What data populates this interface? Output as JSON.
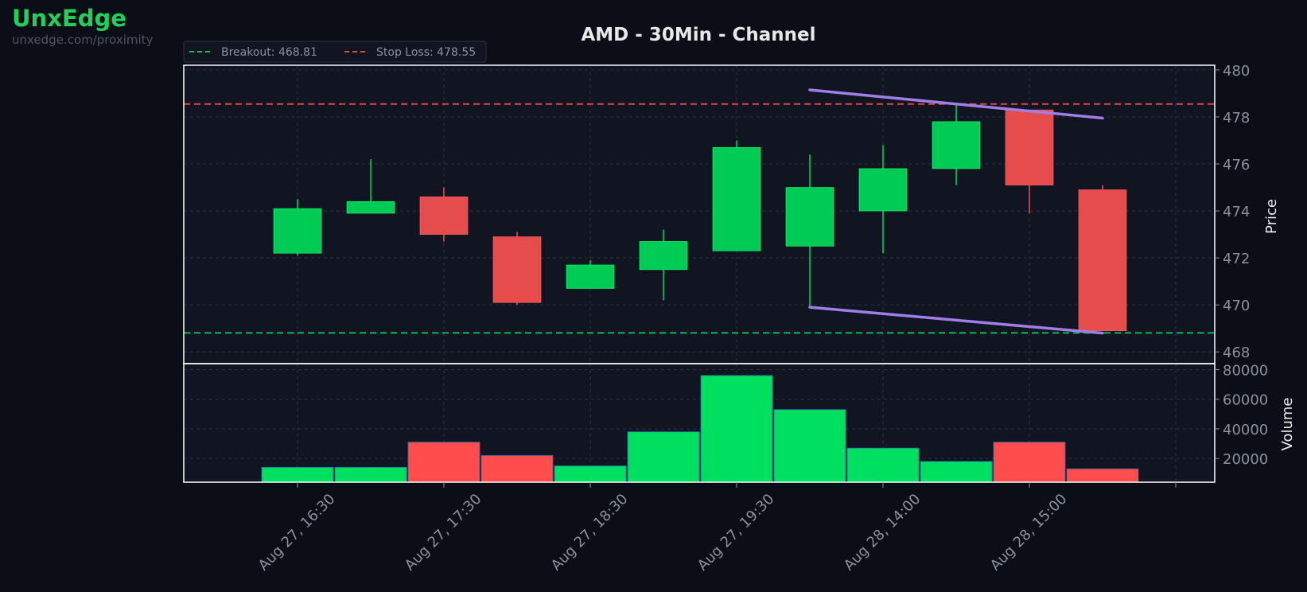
{
  "brand": {
    "name": "UnxEdge",
    "url": "unxedge.com/proximity"
  },
  "colors": {
    "background": "#0b0e16",
    "panel": "#111522",
    "up": "#00cc55",
    "down": "#e74c4c",
    "vol_up": "#00e060",
    "vol_down": "#ff4c4c",
    "channel": "#a07ee8",
    "breakout": "#00c050",
    "stoploss": "#e04848",
    "grid": "#2a3040",
    "text": "#e8e8e8",
    "tick": "#8a909c"
  },
  "chart_data": {
    "type": "candlestick",
    "title": "AMD - 30Min - Channel",
    "ylabel": "Price",
    "volume_label": "Volume",
    "ylim": [
      467.5,
      480.2
    ],
    "volume_ylim": [
      4000,
      84000
    ],
    "price_ticks": [
      468,
      470,
      472,
      474,
      476,
      478,
      480
    ],
    "volume_ticks": [
      20000,
      40000,
      60000,
      80000
    ],
    "x_ticks": [
      {
        "index": 0,
        "label": "Aug 27, 16:30"
      },
      {
        "index": 2,
        "label": "Aug 27, 17:30"
      },
      {
        "index": 4,
        "label": "Aug 27, 18:30"
      },
      {
        "index": 6,
        "label": "Aug 27, 19:30"
      },
      {
        "index": 8,
        "label": "Aug 28, 14:00"
      },
      {
        "index": 10,
        "label": "Aug 28, 15:00"
      },
      {
        "index": 12,
        "label": ""
      }
    ],
    "candles": [
      {
        "open": 472.2,
        "high": 474.5,
        "low": 472.1,
        "close": 474.1,
        "volume": 14000
      },
      {
        "open": 473.9,
        "high": 476.2,
        "low": 473.9,
        "close": 474.4,
        "volume": 14000
      },
      {
        "open": 474.6,
        "high": 475.0,
        "low": 472.7,
        "close": 473.0,
        "volume": 31000
      },
      {
        "open": 472.9,
        "high": 473.1,
        "low": 470.0,
        "close": 470.1,
        "volume": 22000
      },
      {
        "open": 470.7,
        "high": 471.9,
        "low": 470.7,
        "close": 471.7,
        "volume": 15000
      },
      {
        "open": 471.5,
        "high": 473.2,
        "low": 470.2,
        "close": 472.7,
        "volume": 38000
      },
      {
        "open": 472.3,
        "high": 477.0,
        "low": 472.3,
        "close": 476.7,
        "volume": 76000
      },
      {
        "open": 472.5,
        "high": 476.4,
        "low": 469.9,
        "close": 475.0,
        "volume": 53000
      },
      {
        "open": 474.0,
        "high": 476.8,
        "low": 472.2,
        "close": 475.8,
        "volume": 27000
      },
      {
        "open": 475.8,
        "high": 478.6,
        "low": 475.1,
        "close": 477.8,
        "volume": 18000
      },
      {
        "open": 478.3,
        "high": 478.3,
        "low": 473.9,
        "close": 475.1,
        "volume": 31000
      },
      {
        "open": 474.9,
        "high": 475.1,
        "low": 468.9,
        "close": 468.9,
        "volume": 13000
      }
    ],
    "levels": [
      {
        "name": "Breakout",
        "label": "Breakout: 468.81",
        "value": 468.81,
        "color": "#00c050"
      },
      {
        "name": "Stop Loss",
        "label": "Stop Loss: 478.55",
        "value": 478.55,
        "color": "#e04848"
      }
    ],
    "channel": {
      "upper": [
        {
          "index": 7,
          "price": 479.15
        },
        {
          "index": 11,
          "price": 477.95
        }
      ],
      "lower": [
        {
          "index": 7,
          "price": 469.9
        },
        {
          "index": 11,
          "price": 468.8
        }
      ]
    },
    "legend_position": "top-left",
    "grid": true
  }
}
